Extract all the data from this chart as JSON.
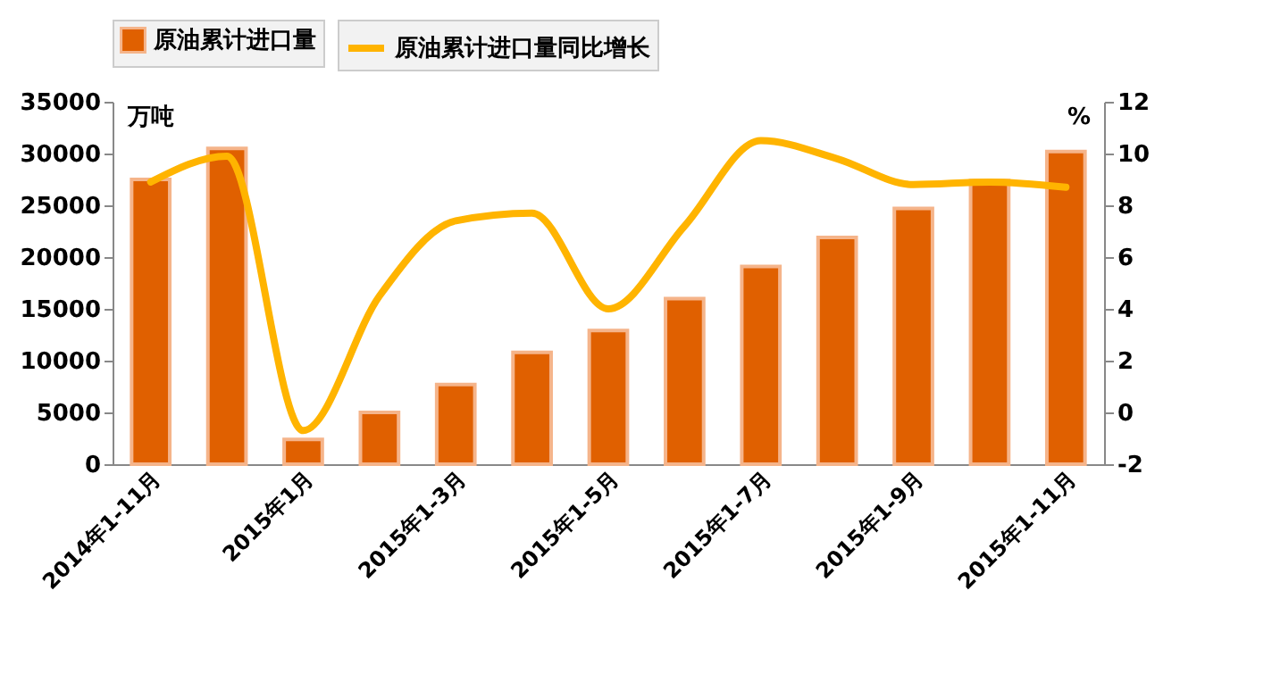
{
  "chart_data": {
    "type": "bar",
    "ylabel": "万吨",
    "y2label": "%",
    "categories": [
      "2014年1-11月",
      null,
      "2015年1月",
      null,
      "2015年1-3月",
      null,
      "2015年1-5月",
      null,
      "2015年1-7月",
      null,
      "2015年1-9月",
      null,
      "2015年1-11月"
    ],
    "series": [
      {
        "name": "原油累计进口量",
        "color": "#e06000",
        "values": [
          27500,
          30500,
          2400,
          5000,
          7700,
          10800,
          12900,
          16000,
          19100,
          21900,
          24700,
          27400,
          30200
        ]
      },
      {
        "name": "原油累计进口量同比增长",
        "type": "line",
        "axis": "y2",
        "color": "#ffb400",
        "values": [
          8.9,
          9.9,
          -0.7,
          4.5,
          7.4,
          7.7,
          4.0,
          7.2,
          10.5,
          9.8,
          8.8,
          8.9,
          8.7
        ]
      }
    ],
    "ylim": [
      0,
      35000
    ],
    "yticks": [
      0,
      5000,
      10000,
      15000,
      20000,
      25000,
      30000,
      35000
    ],
    "y2lim": [
      -2,
      12
    ],
    "y2ticks": [
      -2,
      0,
      2,
      4,
      6,
      8,
      10,
      12
    ],
    "legend": "top",
    "grid": false
  }
}
